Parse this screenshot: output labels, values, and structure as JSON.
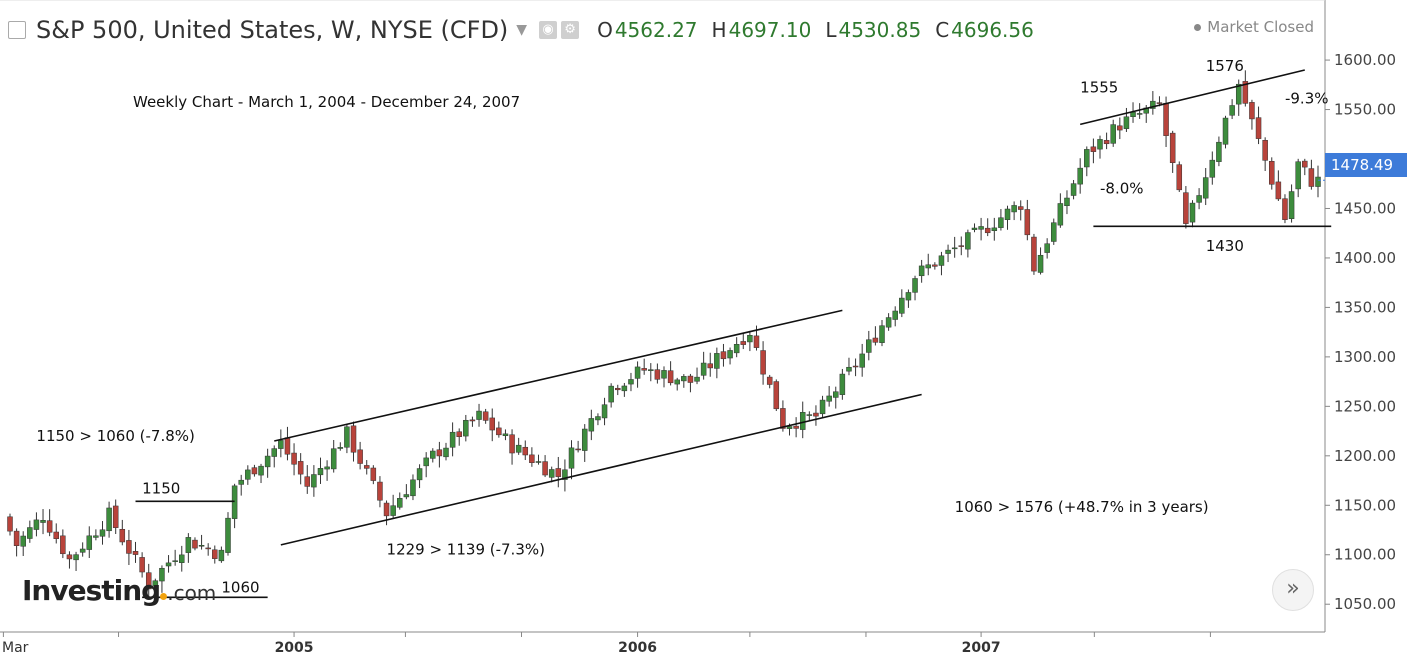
{
  "header": {
    "title": "S&P 500, United States, W, NYSE (CFD)",
    "open_label": "O",
    "open": "4562.27",
    "high_label": "H",
    "high": "4697.10",
    "low_label": "L",
    "low": "4530.85",
    "close_label": "C",
    "close": "4696.56",
    "market_status": "Market Closed",
    "up_color": "#2f7a2f"
  },
  "brand": {
    "name": "Investing",
    "suffix": ".com"
  },
  "scroll_label": "»",
  "chart_data": {
    "type": "candlestick",
    "title": "Weekly Chart - March 1, 2004 - December 24, 2007",
    "ylim": [
      1030,
      1620
    ],
    "yticks": [
      "1050.00",
      "1100.00",
      "1150.00",
      "1200.00",
      "1250.00",
      "1300.00",
      "1350.00",
      "1400.00",
      "1450.00",
      "1500.00",
      "1550.00",
      "1600.00"
    ],
    "xlabels": [
      {
        "label": "Mar",
        "date": "2004-03-01"
      },
      {
        "label": "2005",
        "date": "2005-01-03"
      },
      {
        "label": "2006",
        "date": "2006-01-02"
      },
      {
        "label": "2007",
        "date": "2007-01-01"
      }
    ],
    "minor_ticks": [
      "2004-07-01",
      "2005-05-01",
      "2005-09-01",
      "2006-05-01",
      "2006-09-01",
      "2007-05-01",
      "2007-09-01"
    ],
    "last_price": "1478.49",
    "colors": {
      "up": "#3d8c3d",
      "down": "#b8433b",
      "wick": "#333333",
      "axis": "#999999",
      "tag": "#3d7bd9"
    },
    "anchors": [
      {
        "date": "2004-03-01",
        "price": 1152
      },
      {
        "date": "2004-03-22",
        "price": 1110
      },
      {
        "date": "2004-04-19",
        "price": 1140
      },
      {
        "date": "2004-05-17",
        "price": 1095
      },
      {
        "date": "2004-06-28",
        "price": 1140
      },
      {
        "date": "2004-08-09",
        "price": 1070
      },
      {
        "date": "2004-09-20",
        "price": 1115
      },
      {
        "date": "2004-10-25",
        "price": 1100
      },
      {
        "date": "2004-11-08",
        "price": 1170
      },
      {
        "date": "2004-12-27",
        "price": 1213
      },
      {
        "date": "2005-01-24",
        "price": 1170
      },
      {
        "date": "2005-03-07",
        "price": 1222
      },
      {
        "date": "2005-04-18",
        "price": 1142
      },
      {
        "date": "2005-06-06",
        "price": 1200
      },
      {
        "date": "2005-07-25",
        "price": 1240
      },
      {
        "date": "2005-08-29",
        "price": 1210
      },
      {
        "date": "2005-10-17",
        "price": 1180
      },
      {
        "date": "2005-12-12",
        "price": 1270
      },
      {
        "date": "2006-01-16",
        "price": 1287
      },
      {
        "date": "2006-03-06",
        "price": 1275
      },
      {
        "date": "2006-05-08",
        "price": 1326
      },
      {
        "date": "2006-06-12",
        "price": 1232
      },
      {
        "date": "2006-07-17",
        "price": 1240
      },
      {
        "date": "2006-09-04",
        "price": 1302
      },
      {
        "date": "2006-10-30",
        "price": 1382
      },
      {
        "date": "2006-12-25",
        "price": 1418
      },
      {
        "date": "2007-02-19",
        "price": 1455
      },
      {
        "date": "2007-03-05",
        "price": 1390
      },
      {
        "date": "2007-04-30",
        "price": 1505
      },
      {
        "date": "2007-06-04",
        "price": 1535
      },
      {
        "date": "2007-07-16",
        "price": 1555
      },
      {
        "date": "2007-08-13",
        "price": 1430
      },
      {
        "date": "2007-10-08",
        "price": 1576
      },
      {
        "date": "2007-11-26",
        "price": 1440
      },
      {
        "date": "2007-12-10",
        "price": 1495
      },
      {
        "date": "2007-12-24",
        "price": 1478
      }
    ],
    "trendlines": [
      {
        "from": {
          "date": "2004-07-19",
          "price": 1154
        },
        "to": {
          "date": "2004-11-01",
          "price": 1154
        }
      },
      {
        "from": {
          "date": "2004-07-26",
          "price": 1057
        },
        "to": {
          "date": "2004-12-06",
          "price": 1057
        }
      },
      {
        "from": {
          "date": "2004-12-13",
          "price": 1215
        },
        "to": {
          "date": "2006-08-07",
          "price": 1347
        }
      },
      {
        "from": {
          "date": "2004-12-20",
          "price": 1110
        },
        "to": {
          "date": "2006-10-30",
          "price": 1262
        }
      },
      {
        "from": {
          "date": "2007-04-16",
          "price": 1535
        },
        "to": {
          "date": "2007-12-10",
          "price": 1590
        }
      },
      {
        "from": {
          "date": "2007-04-30",
          "price": 1432
        },
        "to": {
          "date": "2008-01-07",
          "price": 1432
        }
      }
    ],
    "annotations": [
      {
        "text": "1150 > 1060 (-7.8%)",
        "date": "2004-04-05",
        "price": 1215
      },
      {
        "text": "1150",
        "date": "2004-07-26",
        "price": 1162
      },
      {
        "text": "1060",
        "date": "2004-10-18",
        "price": 1062
      },
      {
        "text": "1229 > 1139 (-7.3%)",
        "date": "2005-04-11",
        "price": 1100
      },
      {
        "text": "1060 > 1576 (+48.7% in 3 years)",
        "date": "2006-12-04",
        "price": 1143
      },
      {
        "text": "1555",
        "date": "2007-04-16",
        "price": 1567
      },
      {
        "text": "1576",
        "date": "2007-08-27",
        "price": 1589
      },
      {
        "text": "-9.3%",
        "date": "2007-11-19",
        "price": 1556
      },
      {
        "text": "-8.0%",
        "date": "2007-05-07",
        "price": 1465
      },
      {
        "text": "1430",
        "date": "2007-08-27",
        "price": 1407
      }
    ]
  }
}
